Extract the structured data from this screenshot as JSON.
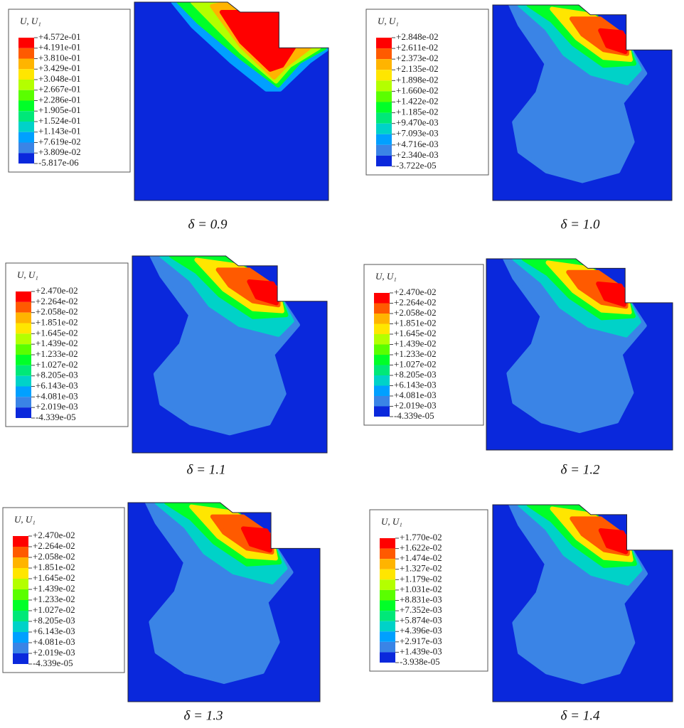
{
  "colormap": [
    "#ff0000",
    "#ff5a00",
    "#ffb400",
    "#ffe600",
    "#b4ff00",
    "#5aff00",
    "#00ff28",
    "#00e878",
    "#00d2c8",
    "#00a0ff",
    "#3a84e6",
    "#0a28dc"
  ],
  "panels": [
    {
      "legend_title": "U, U₁",
      "legend_labels": [
        "+4.572e-01",
        "+4.191e-01",
        "+3.810e-01",
        "+3.429e-01",
        "+3.048e-01",
        "+2.667e-01",
        "+2.286e-01",
        "+1.905e-01",
        "+1.524e-01",
        "+1.143e-01",
        "+7.619e-02",
        "+3.809e-02",
        "-5.817e-06"
      ],
      "caption": "δ = 0.9"
    },
    {
      "legend_title": "U, U₁",
      "legend_labels": [
        "+2.848e-02",
        "+2.611e-02",
        "+2.373e-02",
        "+2.135e-02",
        "+1.898e-02",
        "+1.660e-02",
        "+1.422e-02",
        "+1.185e-02",
        "+9.470e-03",
        "+7.093e-03",
        "+4.716e-03",
        "+2.340e-03",
        "-3.722e-05"
      ],
      "caption": "δ = 1.0"
    },
    {
      "legend_title": "U, U₁",
      "legend_labels": [
        "+2.470e-02",
        "+2.264e-02",
        "+2.058e-02",
        "+1.851e-02",
        "+1.645e-02",
        "+1.439e-02",
        "+1.233e-02",
        "+1.027e-02",
        "+8.205e-03",
        "+6.143e-03",
        "+4.081e-03",
        "+2.019e-03",
        "-4.339e-05"
      ],
      "caption": "δ = 1.1"
    },
    {
      "legend_title": "U, U₁",
      "legend_labels": [
        "+2.470e-02",
        "+2.264e-02",
        "+2.058e-02",
        "+1.851e-02",
        "+1.645e-02",
        "+1.439e-02",
        "+1.233e-02",
        "+1.027e-02",
        "+8.205e-03",
        "+6.143e-03",
        "+4.081e-03",
        "+2.019e-03",
        "-4.339e-05"
      ],
      "caption": "δ = 1.2"
    },
    {
      "legend_title": "U, U₁",
      "legend_labels": [
        "+2.470e-02",
        "+2.264e-02",
        "+2.058e-02",
        "+1.851e-02",
        "+1.645e-02",
        "+1.439e-02",
        "+1.233e-02",
        "+1.027e-02",
        "+8.205e-03",
        "+6.143e-03",
        "+4.081e-03",
        "+2.019e-03",
        "-4.339e-05"
      ],
      "caption": "δ = 1.3"
    },
    {
      "legend_title": "U, U₁",
      "legend_labels": [
        "+1.770e-02",
        "+1.622e-02",
        "+1.474e-02",
        "+1.327e-02",
        "+1.179e-02",
        "+1.031e-02",
        "+8.831e-03",
        "+7.352e-03",
        "+5.874e-03",
        "+4.396e-03",
        "+2.917e-03",
        "+1.439e-03",
        "-3.938e-05"
      ],
      "caption": "δ = 1.4"
    }
  ]
}
